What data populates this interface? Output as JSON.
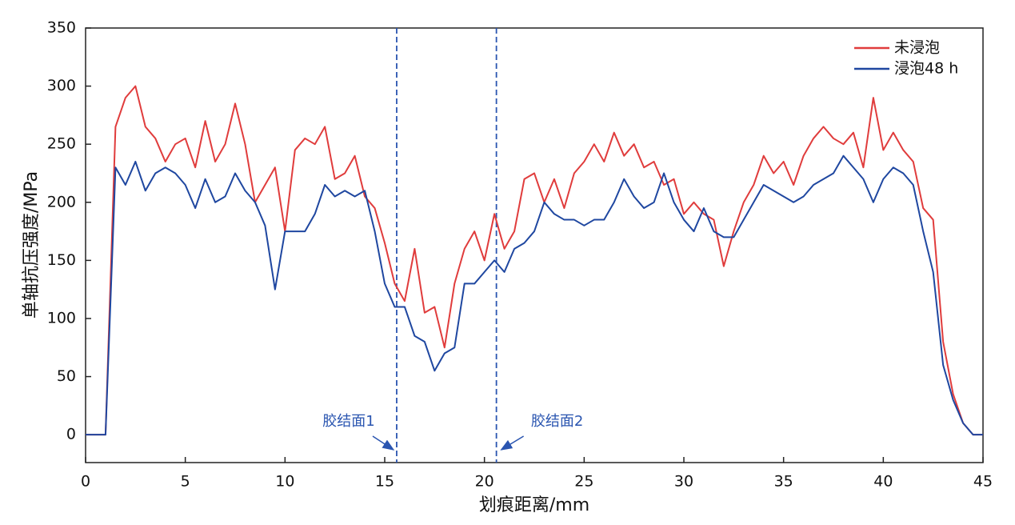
{
  "chart_data": {
    "type": "line",
    "xlabel": "划痕距离/mm",
    "ylabel": "单轴抗压强度/MPa",
    "x": [
      0,
      0.5,
      1,
      1.5,
      2,
      2.5,
      3,
      3.5,
      4,
      4.5,
      5,
      5.5,
      6,
      6.5,
      7,
      7.5,
      8,
      8.5,
      9,
      9.5,
      10,
      10.5,
      11,
      11.5,
      12,
      12.5,
      13,
      13.5,
      14,
      14.5,
      15,
      15.5,
      16,
      16.5,
      17,
      17.5,
      18,
      18.5,
      19,
      19.5,
      20,
      20.5,
      21,
      21.5,
      22,
      22.5,
      23,
      23.5,
      24,
      24.5,
      25,
      25.5,
      26,
      26.5,
      27,
      27.5,
      28,
      28.5,
      29,
      29.5,
      30,
      30.5,
      31,
      31.5,
      32,
      32.5,
      33,
      33.5,
      34,
      34.5,
      35,
      35.5,
      36,
      36.5,
      37,
      37.5,
      38,
      38.5,
      39,
      39.5,
      40,
      40.5,
      41,
      41.5,
      42,
      42.5,
      43,
      43.5,
      44,
      44.5,
      45
    ],
    "series": [
      {
        "name": "未浸泡",
        "color": "#e03c3c",
        "values": [
          0,
          0,
          0,
          265,
          290,
          300,
          265,
          255,
          235,
          250,
          255,
          230,
          270,
          235,
          250,
          285,
          250,
          200,
          215,
          230,
          175,
          245,
          255,
          250,
          265,
          220,
          225,
          240,
          205,
          195,
          165,
          130,
          115,
          160,
          105,
          110,
          75,
          130,
          160,
          175,
          150,
          190,
          160,
          175,
          220,
          225,
          200,
          220,
          195,
          225,
          235,
          250,
          235,
          260,
          240,
          250,
          230,
          235,
          215,
          220,
          190,
          200,
          190,
          185,
          145,
          175,
          200,
          215,
          240,
          225,
          235,
          215,
          240,
          255,
          265,
          255,
          250,
          260,
          230,
          290,
          245,
          260,
          245,
          235,
          195,
          185,
          80,
          35,
          10,
          0,
          0
        ]
      },
      {
        "name": "浸泡48 h",
        "color": "#1f47a0",
        "values": [
          0,
          0,
          0,
          230,
          215,
          235,
          210,
          225,
          230,
          225,
          215,
          195,
          220,
          200,
          205,
          225,
          210,
          200,
          180,
          125,
          175,
          175,
          175,
          190,
          215,
          205,
          210,
          205,
          210,
          175,
          130,
          110,
          110,
          85,
          80,
          55,
          70,
          75,
          130,
          130,
          140,
          150,
          140,
          160,
          165,
          175,
          200,
          190,
          185,
          185,
          180,
          185,
          185,
          200,
          220,
          205,
          195,
          200,
          225,
          200,
          185,
          175,
          195,
          175,
          170,
          170,
          185,
          200,
          215,
          210,
          205,
          200,
          205,
          215,
          220,
          225,
          240,
          230,
          220,
          200,
          220,
          230,
          225,
          215,
          175,
          140,
          60,
          30,
          10,
          0,
          0
        ]
      }
    ],
    "annotations": [
      {
        "text": "胶结面1",
        "x": 15.6
      },
      {
        "text": "胶结面2",
        "x": 20.6
      }
    ],
    "xlim": [
      0,
      45
    ],
    "xticks": [
      0,
      5,
      10,
      15,
      20,
      25,
      30,
      35,
      40,
      45
    ],
    "ylim": [
      -24,
      350
    ],
    "yticks": [
      0,
      50,
      100,
      150,
      200,
      250,
      300,
      350
    ],
    "legend": "upper right"
  }
}
